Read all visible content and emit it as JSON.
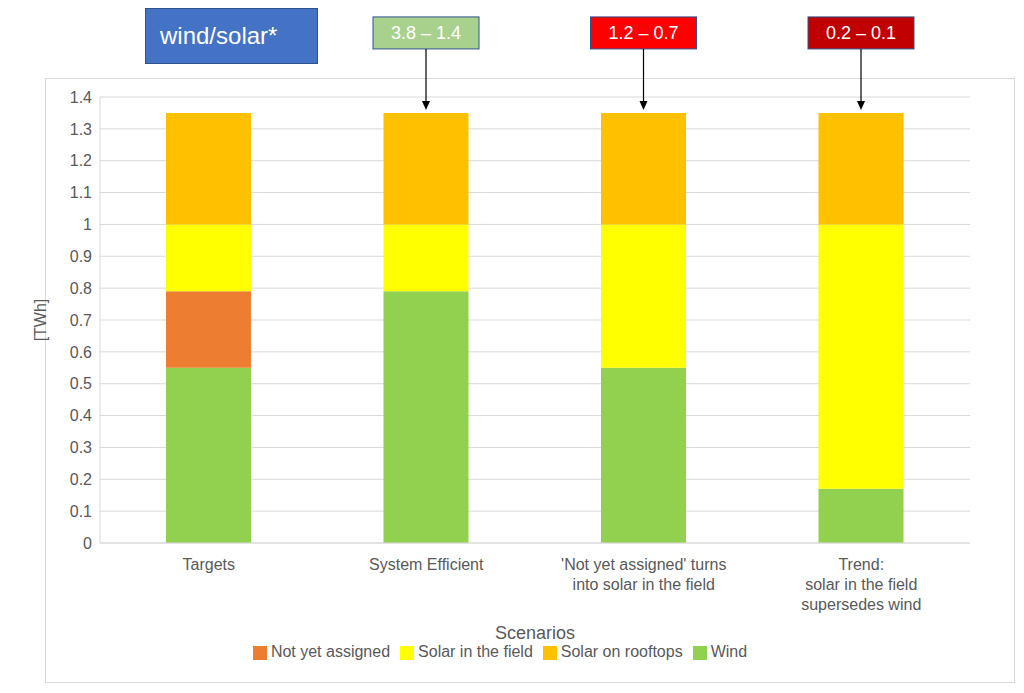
{
  "chart_data": {
    "type": "bar",
    "title": "wind/solar*",
    "stacked": true,
    "grid": true,
    "legend": "bottom",
    "x_label": "Scenarios",
    "y_label": "[TWh]",
    "categories": [
      "Targets",
      "System Efficient",
      "'Not yet assigned' turns\ninto solar in the field",
      "Trend:\nsolar in the field\nsupersedes wind"
    ],
    "series": [
      {
        "name": "Wind",
        "color": "#92D050",
        "values": [
          0.55,
          0.79,
          0.55,
          0.17
        ]
      },
      {
        "name": "Not yet assigned",
        "color": "#ED7D31",
        "values": [
          0.24,
          0,
          0,
          0
        ]
      },
      {
        "name": "Solar in the field",
        "color": "#FFFF00",
        "values": [
          0.21,
          0.21,
          0.45,
          0.83
        ]
      },
      {
        "name": "Solar on rooftops",
        "color": "#FFC000",
        "values": [
          0.35,
          0.35,
          0.35,
          0.35
        ]
      }
    ],
    "ylim": [
      0,
      1.4
    ],
    "yticks": [
      0,
      0.1,
      0.2,
      0.3,
      0.4,
      0.5,
      0.6,
      0.7,
      0.8,
      0.9,
      1,
      1.1,
      1.2,
      1.3,
      1.4
    ],
    "annotations": [
      {
        "category": "System Efficient",
        "text": "3.8 – 1.4",
        "color": "#A9D18E"
      },
      {
        "category": "'Not yet assigned' turns\ninto solar in the field",
        "text": "1.2 – 0.7",
        "color": "#FF0000"
      },
      {
        "category": "Trend:\nsolar in the field\nsupersedes wind",
        "text": "0.2 – 0.1",
        "color": "#C00000"
      }
    ]
  }
}
